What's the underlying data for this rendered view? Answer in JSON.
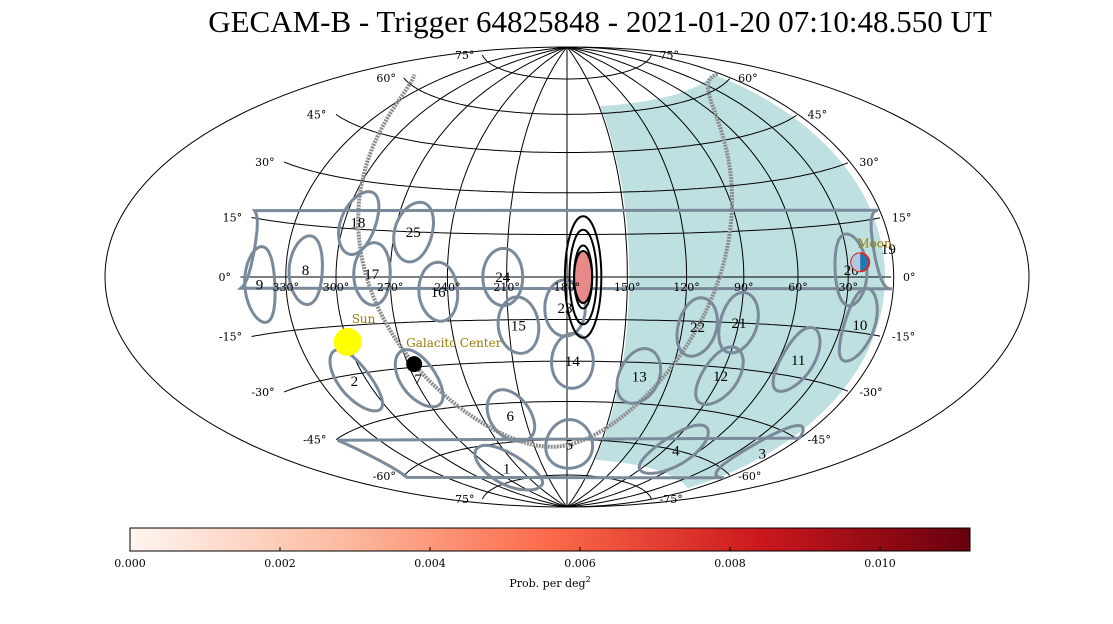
{
  "title": "GECAM-B - Trigger 64825848 - 2021-01-20 07:10:48.550 UT",
  "chart_data": {
    "type": "heatmap",
    "projection": "Aitoff/Hammer all-sky (RA increases to the left)",
    "grid": true,
    "ra_labels": [
      "330°",
      "300°",
      "270°",
      "240°",
      "210°",
      "180°",
      "150°",
      "120°",
      "90°",
      "60°",
      "30°"
    ],
    "ra_values": [
      330,
      300,
      270,
      240,
      210,
      180,
      150,
      120,
      90,
      60,
      30
    ],
    "dec_labels": [
      {
        "text": "75°",
        "dec": 75
      },
      {
        "text": "60°",
        "dec": 60
      },
      {
        "text": "45°",
        "dec": 45
      },
      {
        "text": "30°",
        "dec": 30
      },
      {
        "text": "15°",
        "dec": 15
      },
      {
        "text": "0°",
        "dec": 0
      },
      {
        "text": "-15°",
        "dec": -15
      },
      {
        "text": "-30°",
        "dec": -30
      },
      {
        "text": "-45°",
        "dec": -45
      },
      {
        "text": "-60°",
        "dec": -60
      },
      {
        "text": "-75°",
        "dec": -75
      }
    ],
    "detectors": [
      {
        "id": "1",
        "ra": 255,
        "dec": -70
      },
      {
        "id": "2",
        "ra": 308,
        "dec": -32
      },
      {
        "id": "3",
        "ra": 10,
        "dec": -52
      },
      {
        "id": "4",
        "ra": 80,
        "dec": -60
      },
      {
        "id": "5",
        "ra": 178,
        "dec": -62
      },
      {
        "id": "6",
        "ra": 220,
        "dec": -50
      },
      {
        "id": "7",
        "ra": 268,
        "dec": -34
      },
      {
        "id": "8",
        "ra": 318,
        "dec": 2
      },
      {
        "id": "9",
        "ra": 347,
        "dec": -2
      },
      {
        "id": "10",
        "ra": 18,
        "dec": -13
      },
      {
        "id": "11",
        "ra": 48,
        "dec": -25
      },
      {
        "id": "12",
        "ra": 90,
        "dec": -33
      },
      {
        "id": "13",
        "ra": 138,
        "dec": -35
      },
      {
        "id": "14",
        "ra": 177,
        "dec": -30
      },
      {
        "id": "15",
        "ra": 205,
        "dec": -17
      },
      {
        "id": "16",
        "ra": 245,
        "dec": -5
      },
      {
        "id": "17",
        "ra": 280,
        "dec": 1
      },
      {
        "id": "18",
        "ra": 292,
        "dec": 17
      },
      {
        "id": "19",
        "ra": 2,
        "dec": 7
      },
      {
        "id": "20",
        "ra": 28,
        "dec": 2
      },
      {
        "id": "21",
        "ra": 90,
        "dec": -15
      },
      {
        "id": "22",
        "ra": 112,
        "dec": -17
      },
      {
        "id": "23",
        "ra": 181,
        "dec": -11
      },
      {
        "id": "24",
        "ra": 212,
        "dec": 0
      },
      {
        "id": "25",
        "ra": 260,
        "dec": 15
      }
    ],
    "source_contours": [
      {
        "ra": 172,
        "dec": 0,
        "w": 0.5,
        "h": 0.7
      },
      {
        "ra": 172,
        "dec": 0,
        "w": 0.75,
        "h": 1.05
      },
      {
        "ra": 172,
        "dec": 0,
        "w": 1.0,
        "h": 1.35
      }
    ],
    "earth_occultation": {
      "ra_min": 6,
      "ra_max": 149,
      "dec_min": -68,
      "dec_max": 63
    },
    "sun": {
      "label": "Sun",
      "ra": 300,
      "dec": -20,
      "color": "#ffff00"
    },
    "moon": {
      "label": "Moon",
      "ra": 22,
      "dec": 4
    },
    "galactic_center": {
      "label": "Galacitc Center",
      "ra": 266.4,
      "dec": -29
    },
    "colorbar": {
      "label": "Prob. per deg",
      "label_sup": "2",
      "ticks": [
        "0.000",
        "0.002",
        "0.004",
        "0.006",
        "0.008",
        "0.010"
      ],
      "tick_values": [
        0.0,
        0.002,
        0.004,
        0.006,
        0.008,
        0.01
      ],
      "vmin": 0.0,
      "vmax": 0.0112,
      "colormap_colors": [
        "#fff5f0",
        "#fcbba1",
        "#fb6a4a",
        "#cb181d",
        "#67000d"
      ]
    },
    "colors": {
      "detector": "#7a8a9a",
      "galactic_plane": "#8c8c8c",
      "occultation": "#b4dada",
      "contour": "#000000",
      "moon": "#1f77b4",
      "moon_outline": "#d62728"
    }
  }
}
